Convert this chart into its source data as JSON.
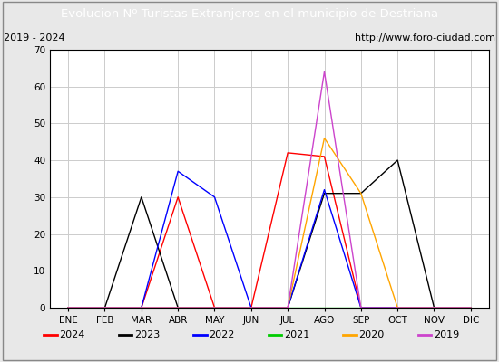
{
  "title": "Evolucion Nº Turistas Extranjeros en el municipio de Destriana",
  "subtitle_left": "2019 - 2024",
  "subtitle_right": "http://www.foro-ciudad.com",
  "title_bg_color": "#4472c4",
  "title_text_color": "#ffffff",
  "months": [
    "ENE",
    "FEB",
    "MAR",
    "ABR",
    "MAY",
    "JUN",
    "JUL",
    "AGO",
    "SEP",
    "OCT",
    "NOV",
    "DIC"
  ],
  "ylim": [
    0,
    70
  ],
  "yticks": [
    0,
    10,
    20,
    30,
    40,
    50,
    60,
    70
  ],
  "series": {
    "2024": {
      "color": "#ff0000",
      "values": [
        0,
        0,
        0,
        30,
        0,
        0,
        42,
        41,
        0,
        0,
        0,
        0
      ]
    },
    "2023": {
      "color": "#000000",
      "values": [
        0,
        0,
        30,
        0,
        0,
        0,
        0,
        31,
        31,
        40,
        0,
        0
      ]
    },
    "2022": {
      "color": "#0000ff",
      "values": [
        0,
        0,
        0,
        37,
        30,
        0,
        0,
        32,
        0,
        0,
        0,
        0
      ]
    },
    "2021": {
      "color": "#00cc00",
      "values": [
        0,
        0,
        0,
        0,
        0,
        0,
        0,
        0,
        0,
        0,
        0,
        0
      ]
    },
    "2020": {
      "color": "#ffa500",
      "values": [
        0,
        0,
        0,
        0,
        0,
        0,
        0,
        46,
        31,
        0,
        0,
        0
      ]
    },
    "2019": {
      "color": "#cc44cc",
      "values": [
        0,
        0,
        0,
        0,
        0,
        0,
        0,
        64,
        0,
        0,
        0,
        0
      ]
    }
  },
  "legend_order": [
    "2024",
    "2023",
    "2022",
    "2021",
    "2020",
    "2019"
  ],
  "grid_color": "#cccccc",
  "bg_color": "#e8e8e8",
  "plot_bg_color": "#f0f0f0",
  "chart_bg_color": "#e0e0e0",
  "inner_bg_color": "#ffffff"
}
